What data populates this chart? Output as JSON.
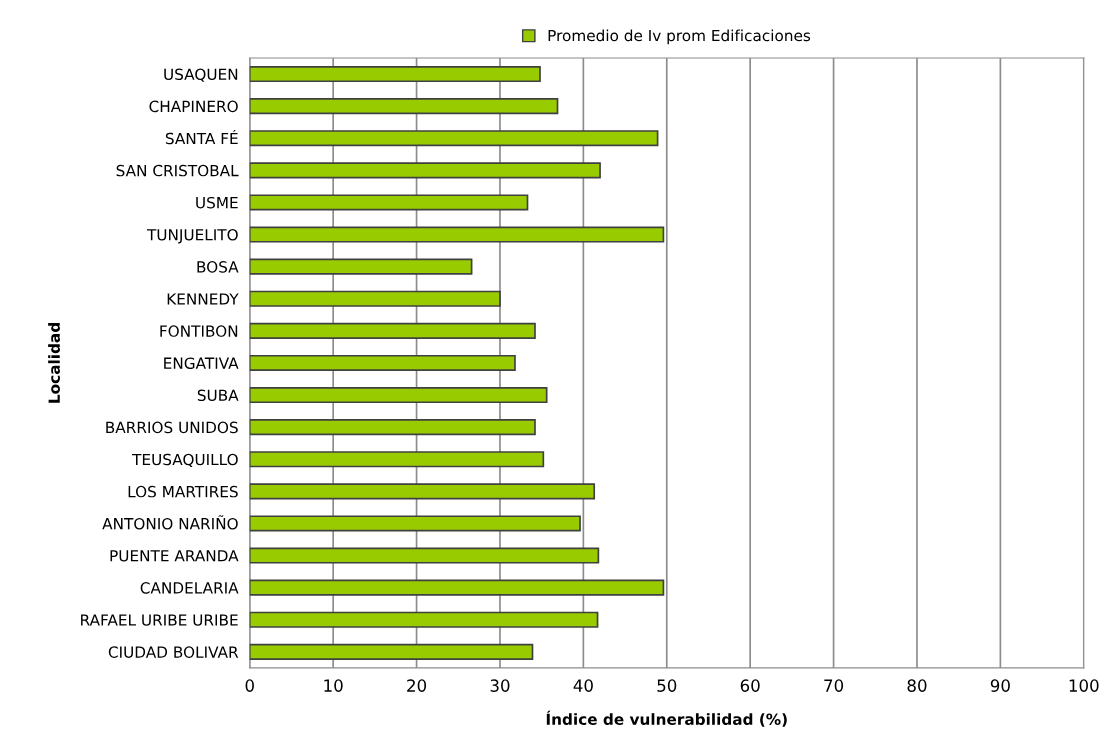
{
  "chart_data": {
    "type": "bar",
    "orientation": "horizontal",
    "xlabel": "Índice de vulnerabilidad (%)",
    "ylabel": "Localidad",
    "categories": [
      "USAQUEN",
      "CHAPINERO",
      "SANTA FÉ",
      "SAN CRISTOBAL",
      "USME",
      "TUNJUELITO",
      "BOSA",
      "KENNEDY",
      "FONTIBON",
      "ENGATIVA",
      "SUBA",
      "BARRIOS UNIDOS",
      "TEUSAQUILLO",
      "LOS MARTIRES",
      "ANTONIO NARIÑO",
      "PUENTE ARANDA",
      "CANDELARIA",
      "RAFAEL URIBE URIBE",
      "CIUDAD BOLIVAR"
    ],
    "series": [
      {
        "name": "Promedio de Iv prom Edificaciones",
        "color": "#99cc00",
        "values": [
          34.8,
          36.9,
          48.9,
          42.0,
          33.3,
          49.6,
          26.6,
          30.0,
          34.2,
          31.8,
          35.6,
          34.2,
          35.2,
          41.3,
          39.6,
          41.8,
          49.6,
          41.7,
          33.9
        ]
      }
    ],
    "xlim": [
      0,
      100
    ],
    "xticks": [
      0,
      10,
      20,
      30,
      40,
      50,
      60,
      70,
      80,
      90,
      100
    ],
    "grid": "x",
    "legend": "top"
  }
}
